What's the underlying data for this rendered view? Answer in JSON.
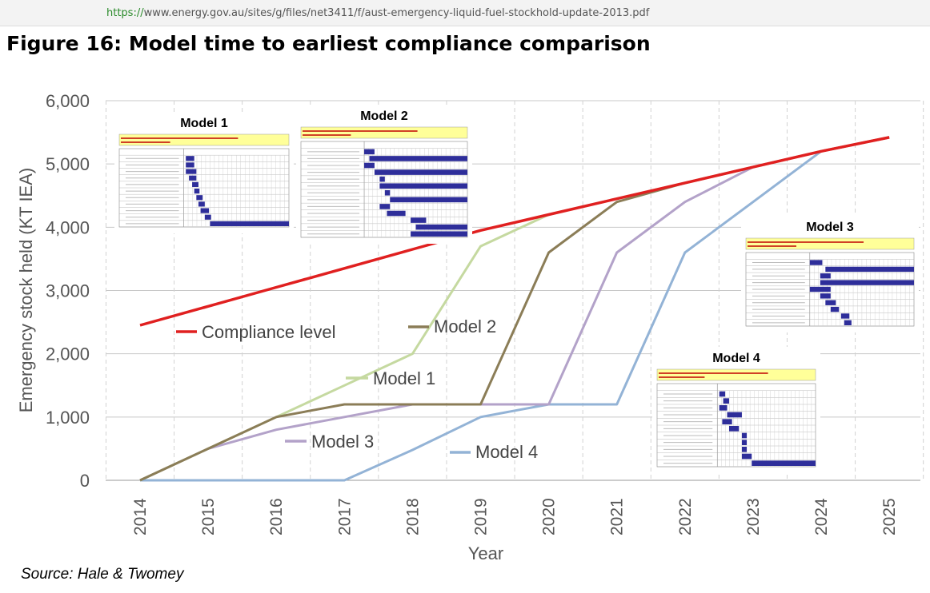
{
  "browser": {
    "url": "https://www.energy.gov.au/sites/g/files/net3411/f/aust-emergency-liquid-fuel-stockhold-update-2013.pdf"
  },
  "figure": {
    "title": "Figure 16: Model time to earliest compliance comparison",
    "source": "Source: Hale & Twomey"
  },
  "insets": [
    {
      "title": "Model 1"
    },
    {
      "title": "Model 2"
    },
    {
      "title": "Model 3"
    },
    {
      "title": "Model 4"
    }
  ],
  "chart_data": {
    "type": "line",
    "xlabel": "Year",
    "ylabel": "Emergency stock held (KT IEA)",
    "ylim": [
      0,
      6000
    ],
    "yticks": [
      0,
      1000,
      2000,
      3000,
      4000,
      5000,
      6000
    ],
    "ytick_labels": [
      "0",
      "1,000",
      "2,000",
      "3,000",
      "4,000",
      "5,000",
      "6,000"
    ],
    "x": [
      2014,
      2015,
      2016,
      2017,
      2018,
      2019,
      2020,
      2021,
      2022,
      2023,
      2024,
      2025
    ],
    "xtick_labels": [
      "2014",
      "2015",
      "2016",
      "2017",
      "2018",
      "2019",
      "2020",
      "2021",
      "2022",
      "2023",
      "2024",
      "2025"
    ],
    "grid": true,
    "series": [
      {
        "name": "Compliance level",
        "color": "#e02020",
        "values": [
          2450,
          2750,
          3050,
          3350,
          3650,
          3950,
          4200,
          4450,
          4700,
          4950,
          5200,
          5420
        ]
      },
      {
        "name": "Model 1",
        "color": "#c5d9a0",
        "values": [
          0,
          500,
          1000,
          1500,
          2000,
          3700,
          4200,
          4450,
          4700,
          4950,
          5200,
          5420
        ]
      },
      {
        "name": "Model 2",
        "color": "#8b7d57",
        "values": [
          0,
          500,
          1000,
          1200,
          1200,
          1200,
          3600,
          4400,
          4700,
          4950,
          5200,
          5420
        ]
      },
      {
        "name": "Model 3",
        "color": "#b3a2c9",
        "values": [
          0,
          500,
          800,
          1000,
          1200,
          1200,
          1200,
          3600,
          4400,
          4950,
          5200,
          5420
        ]
      },
      {
        "name": "Model 4",
        "color": "#93b3d6",
        "values": [
          0,
          0,
          0,
          0,
          480,
          1000,
          1200,
          1200,
          3600,
          4400,
          5200,
          5420
        ]
      }
    ]
  }
}
